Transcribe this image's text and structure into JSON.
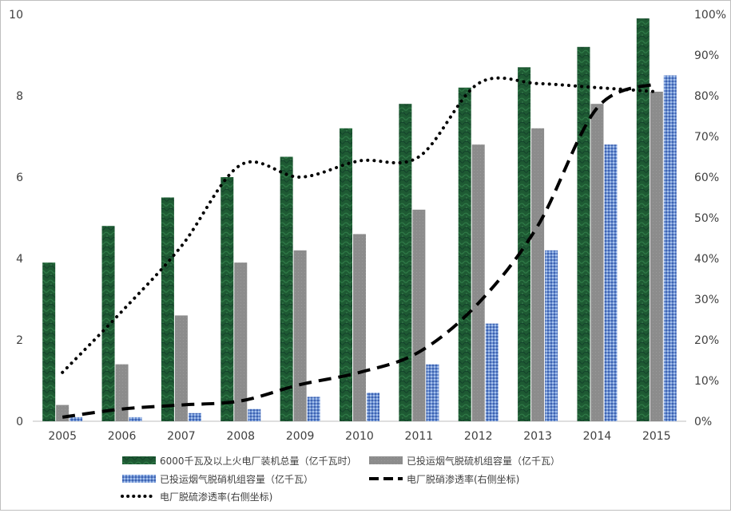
{
  "chart_data": {
    "type": "bar",
    "categories": [
      "2005",
      "2006",
      "2007",
      "2008",
      "2009",
      "2010",
      "2011",
      "2012",
      "2013",
      "2014",
      "2015"
    ],
    "y_left": {
      "ylim": [
        0,
        10
      ],
      "ticks": [
        "0",
        "2",
        "4",
        "6",
        "8",
        "10"
      ]
    },
    "y_right": {
      "ylim": [
        0,
        100
      ],
      "ticks": [
        "0%",
        "10%",
        "20%",
        "30%",
        "40%",
        "50%",
        "60%",
        "70%",
        "80%",
        "90%",
        "100%"
      ]
    },
    "grid": false,
    "legend": "bottom",
    "series": [
      {
        "name": "6000千瓦及以上火电厂装机总量（亿千瓦时）",
        "kind": "bar",
        "axis": "left",
        "color": "#1e5a33",
        "values": [
          3.9,
          4.8,
          5.5,
          6.0,
          6.5,
          7.2,
          7.8,
          8.2,
          8.7,
          9.2,
          9.9
        ]
      },
      {
        "name": "已投运烟气脱硫机组容量（亿千瓦）",
        "kind": "bar",
        "axis": "left",
        "color": "#8c8c8c",
        "values": [
          0.4,
          1.4,
          2.6,
          3.9,
          4.2,
          4.6,
          5.2,
          6.8,
          7.2,
          7.8,
          8.1
        ]
      },
      {
        "name": "已投运烟气脱硝机组容量（亿千瓦）",
        "kind": "bar",
        "axis": "left",
        "color": "#5b82c9",
        "values": [
          0.1,
          0.1,
          0.2,
          0.3,
          0.6,
          0.7,
          1.4,
          2.4,
          4.2,
          6.8,
          8.5
        ]
      },
      {
        "name": "电厂脱硝渗透率(右侧坐标)",
        "kind": "line",
        "style": "dashed",
        "axis": "right",
        "color": "#000000",
        "values": [
          1,
          3,
          4,
          5,
          9,
          12,
          17,
          29,
          48,
          77,
          83
        ]
      },
      {
        "name": "电厂脱硫渗透率(右侧坐标)",
        "kind": "line",
        "style": "dotted",
        "axis": "right",
        "color": "#000000",
        "values": [
          12,
          27,
          43,
          63,
          60,
          64,
          65,
          83,
          83,
          82,
          81
        ]
      }
    ]
  }
}
